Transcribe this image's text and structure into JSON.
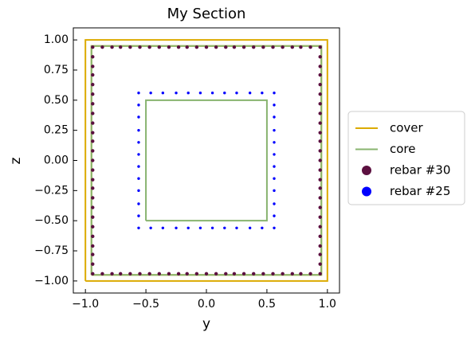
{
  "chart_data": {
    "type": "section",
    "title": "My Section",
    "x_label": "y",
    "y_label": "z",
    "xlim": [
      -1.1,
      1.1
    ],
    "ylim": [
      -1.1,
      1.1
    ],
    "xticks": [
      {
        "value": -1,
        "label": "−1.0"
      },
      {
        "value": -0.5,
        "label": "−0.5"
      },
      {
        "value": 0,
        "label": "0.0"
      },
      {
        "value": 0.5,
        "label": "0.5"
      },
      {
        "value": 1,
        "label": "1.0"
      }
    ],
    "yticks": [
      {
        "value": -1,
        "label": "−1.00"
      },
      {
        "value": -0.75,
        "label": "−0.75"
      },
      {
        "value": -0.5,
        "label": "−0.50"
      },
      {
        "value": -0.25,
        "label": "−0.25"
      },
      {
        "value": 0,
        "label": "0.00"
      },
      {
        "value": 0.25,
        "label": "0.25"
      },
      {
        "value": 0.5,
        "label": "0.50"
      },
      {
        "value": 0.75,
        "label": "0.75"
      },
      {
        "value": 1,
        "label": "1.00"
      }
    ],
    "legend": "outside-right",
    "series": [
      {
        "name": "cover",
        "kind": "line",
        "color": "#dcaa00",
        "x": [
          -1,
          1,
          1,
          -1,
          -1,
          null,
          -0.95,
          0.95,
          0.95,
          -0.95,
          -0.95
        ],
        "y": [
          -1,
          -1,
          1,
          1,
          -1,
          null,
          -0.95,
          -0.95,
          0.95,
          0.95,
          -0.95
        ]
      },
      {
        "name": "core",
        "kind": "line",
        "color": "#88b46f",
        "x": [
          -0.95,
          0.95,
          0.95,
          -0.95,
          -0.95,
          null,
          -0.5,
          0.5,
          0.5,
          -0.5,
          -0.5
        ],
        "y": [
          -0.95,
          -0.95,
          0.95,
          0.95,
          -0.95,
          null,
          -0.5,
          -0.5,
          0.5,
          0.5,
          -0.5
        ]
      },
      {
        "name": "rebar #30",
        "kind": "scatter",
        "color": "#5c1040",
        "x": [
          -0.94,
          -0.86,
          -0.78,
          -0.71,
          -0.63,
          -0.55,
          -0.47,
          -0.39,
          -0.31,
          -0.23,
          -0.16,
          -0.08,
          0,
          0.08,
          0.16,
          0.23,
          0.31,
          0.39,
          0.47,
          0.55,
          0.63,
          0.71,
          0.78,
          0.86,
          0.94,
          -0.94,
          -0.86,
          -0.78,
          -0.71,
          -0.63,
          -0.55,
          -0.47,
          -0.39,
          -0.31,
          -0.23,
          -0.16,
          -0.08,
          0,
          0.08,
          0.16,
          0.23,
          0.31,
          0.39,
          0.47,
          0.55,
          0.63,
          0.71,
          0.78,
          0.86,
          0.94,
          -0.94,
          -0.94,
          -0.94,
          -0.94,
          -0.94,
          -0.94,
          -0.94,
          -0.94,
          -0.94,
          -0.94,
          -0.94,
          -0.94,
          -0.94,
          -0.94,
          -0.94,
          -0.94,
          -0.94,
          -0.94,
          -0.94,
          -0.94,
          -0.94,
          -0.94,
          -0.94,
          0.94,
          0.94,
          0.94,
          0.94,
          0.94,
          0.94,
          0.94,
          0.94,
          0.94,
          0.94,
          0.94,
          0.94,
          0.94,
          0.94,
          0.94,
          0.94,
          0.94,
          0.94,
          0.94,
          0.94,
          0.94,
          0.94,
          0.94
        ],
        "y": [
          0.94,
          0.94,
          0.94,
          0.94,
          0.94,
          0.94,
          0.94,
          0.94,
          0.94,
          0.94,
          0.94,
          0.94,
          0.94,
          0.94,
          0.94,
          0.94,
          0.94,
          0.94,
          0.94,
          0.94,
          0.94,
          0.94,
          0.94,
          0.94,
          0.94,
          -0.94,
          -0.94,
          -0.94,
          -0.94,
          -0.94,
          -0.94,
          -0.94,
          -0.94,
          -0.94,
          -0.94,
          -0.94,
          -0.94,
          -0.94,
          -0.94,
          -0.94,
          -0.94,
          -0.94,
          -0.94,
          -0.94,
          -0.94,
          -0.94,
          -0.94,
          -0.94,
          -0.94,
          -0.94,
          -0.86,
          -0.78,
          -0.71,
          -0.63,
          -0.55,
          -0.47,
          -0.39,
          -0.31,
          -0.23,
          -0.16,
          -0.08,
          0,
          0.08,
          0.16,
          0.23,
          0.31,
          0.39,
          0.47,
          0.55,
          0.63,
          0.71,
          0.78,
          0.86,
          -0.86,
          -0.78,
          -0.71,
          -0.63,
          -0.55,
          -0.47,
          -0.39,
          -0.31,
          -0.23,
          -0.16,
          -0.08,
          0,
          0.08,
          0.16,
          0.23,
          0.31,
          0.39,
          0.47,
          0.55,
          0.63,
          0.71,
          0.78,
          0.86
        ]
      },
      {
        "name": "rebar #25",
        "kind": "scatter",
        "color": "#0000ff",
        "x": [
          -0.56,
          -0.46,
          -0.36,
          -0.25,
          -0.15,
          -0.05,
          0.05,
          0.15,
          0.25,
          0.36,
          0.46,
          0.56,
          -0.56,
          -0.46,
          -0.36,
          -0.25,
          -0.15,
          -0.05,
          0.05,
          0.15,
          0.25,
          0.36,
          0.46,
          0.56,
          -0.56,
          -0.56,
          -0.56,
          -0.56,
          -0.56,
          -0.56,
          -0.56,
          -0.56,
          -0.56,
          -0.56,
          0.56,
          0.56,
          0.56,
          0.56,
          0.56,
          0.56,
          0.56,
          0.56,
          0.56,
          0.56
        ],
        "y": [
          0.56,
          0.56,
          0.56,
          0.56,
          0.56,
          0.56,
          0.56,
          0.56,
          0.56,
          0.56,
          0.56,
          0.56,
          -0.56,
          -0.56,
          -0.56,
          -0.56,
          -0.56,
          -0.56,
          -0.56,
          -0.56,
          -0.56,
          -0.56,
          -0.56,
          -0.56,
          -0.46,
          -0.36,
          -0.25,
          -0.15,
          -0.05,
          0.05,
          0.15,
          0.25,
          0.36,
          0.46,
          -0.46,
          -0.36,
          -0.25,
          -0.15,
          -0.05,
          0.05,
          0.15,
          0.25,
          0.36,
          0.46
        ]
      }
    ]
  }
}
